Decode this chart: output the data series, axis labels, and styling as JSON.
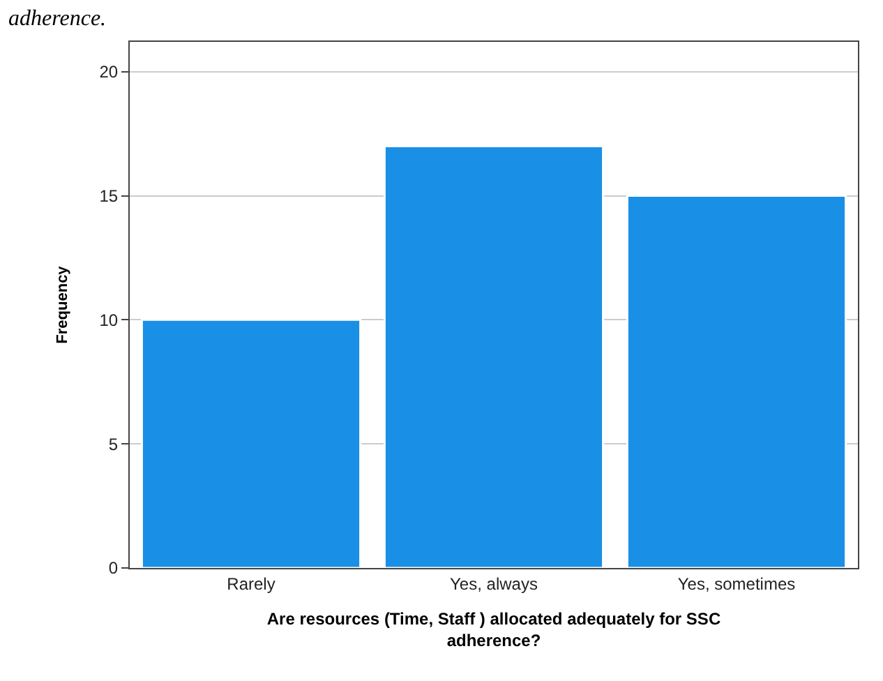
{
  "chart_data": {
    "type": "bar",
    "categories": [
      "Rarely",
      "Yes, always",
      "Yes, sometimes"
    ],
    "values": [
      10,
      17,
      15
    ],
    "color": "#1a8fe6",
    "ylim": [
      0,
      21.2
    ],
    "yticks": [
      0,
      5,
      10,
      15,
      20
    ],
    "grid": "y",
    "xlabel": "Are resources (Time, Staff ) allocated adequately for SSC\nadherence?",
    "ylabel": "Frequency",
    "annotations": [
      "adherence."
    ]
  }
}
